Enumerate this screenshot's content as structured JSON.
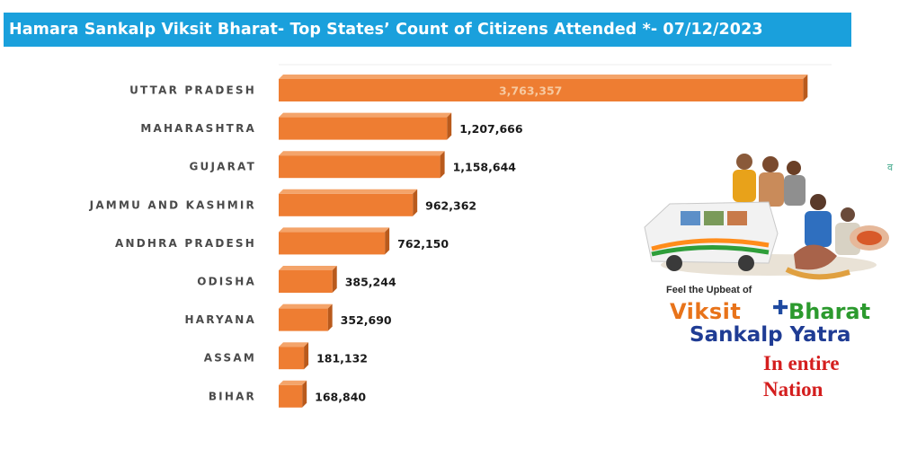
{
  "title": "Hamara Sankalp Viksit Bharat- Top States’ Count of Citizens Attended *- 07/12/2023",
  "colors": {
    "title_bar": "#1aa0dc",
    "bar_front": "#ee7d32",
    "bar_top": "#f4a46a",
    "bar_side": "#b95a1c",
    "promo_orange": "#e8731a",
    "promo_green": "#2c9a2e",
    "promo_blue": "#1f3c94",
    "promo_red": "#d41e1e"
  },
  "chart_data": {
    "type": "bar",
    "orientation": "horizontal",
    "style": "3d",
    "categories": [
      "UTTAR PRADESH",
      "MAHARASHTRA",
      "GUJARAT",
      "JAMMU AND KASHMIR",
      "ANDHRA PRADESH",
      "ODISHA",
      "HARYANA",
      "ASSAM",
      "BIHAR"
    ],
    "values": [
      3763357,
      1207666,
      1158644,
      962362,
      762150,
      385244,
      352690,
      181132,
      168840
    ],
    "value_labels": [
      "3,763,357",
      "1,207,666",
      "1,158,644",
      "962,362",
      "762,150",
      "385,244",
      "352,690",
      "181,132",
      "168,840"
    ],
    "xlim": [
      0,
      4000000
    ],
    "grid": false,
    "legend": "none"
  },
  "promo": {
    "tagline": "Feel the Upbeat of",
    "brand_word1": "Viksit",
    "brand_word2": "Bharat",
    "brand_line2": "Sankalp Yatra",
    "slogan_line1": "In entire",
    "slogan_line2": "Nation",
    "photo_icon": "yatra-van-photo-icon"
  },
  "edge_mark": "व"
}
